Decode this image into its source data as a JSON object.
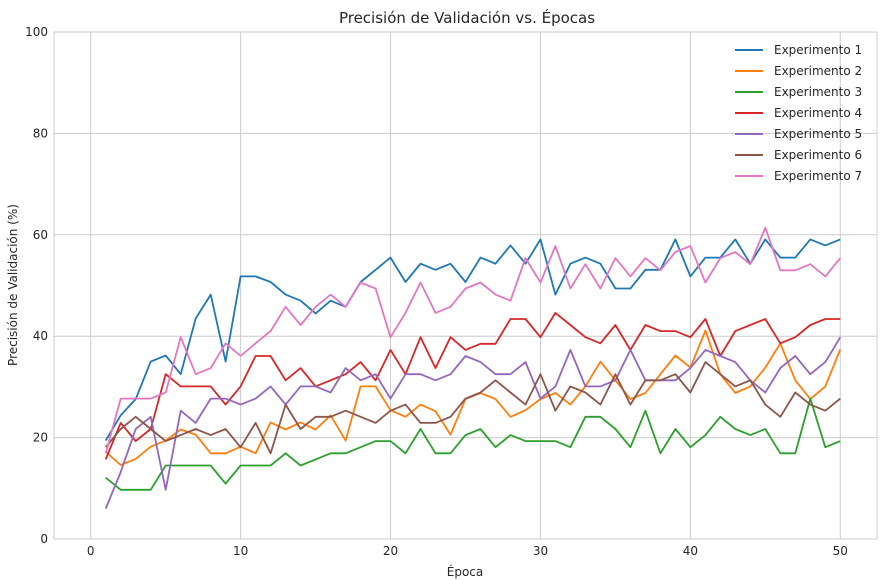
{
  "chart_data": {
    "type": "line",
    "title": "Precisión de Validación vs. Épocas",
    "xlabel": "Época",
    "ylabel": "Precisión de Validación (%)",
    "xlim": [
      -2.45,
      52.45
    ],
    "ylim": [
      0,
      100
    ],
    "xticks": [
      0,
      10,
      20,
      30,
      40,
      50
    ],
    "yticks": [
      0,
      20,
      40,
      60,
      80,
      100
    ],
    "grid": true,
    "legend_position": "top-right",
    "x": [
      1,
      2,
      3,
      4,
      5,
      6,
      7,
      8,
      9,
      10,
      11,
      12,
      13,
      14,
      15,
      16,
      17,
      18,
      19,
      20,
      21,
      22,
      23,
      24,
      25,
      26,
      27,
      28,
      29,
      30,
      31,
      32,
      33,
      34,
      35,
      36,
      37,
      38,
      39,
      40,
      41,
      42,
      43,
      44,
      45,
      46,
      47,
      48,
      49,
      50
    ],
    "series": [
      {
        "name": "Experimento 1",
        "color": "#1f77b4",
        "values": [
          19.4,
          24.4,
          27.6,
          35,
          36.2,
          32.5,
          43.5,
          48.2,
          35,
          51.8,
          51.8,
          50.7,
          48.2,
          47,
          44.5,
          47,
          45.8,
          50.7,
          53.1,
          55.5,
          50.7,
          54.3,
          53.1,
          54.3,
          50.7,
          55.5,
          54.3,
          57.9,
          54.3,
          59.1,
          48.2,
          54.3,
          55.5,
          54.3,
          49.4,
          49.4,
          53.1,
          53.1,
          59.1,
          51.8,
          55.5,
          55.5,
          59.1,
          54.3,
          59.1,
          55.5,
          55.5,
          59.1,
          57.9,
          59.1
        ]
      },
      {
        "name": "Experimento 2",
        "color": "#ff7f0e",
        "values": [
          17.2,
          14.6,
          15.8,
          18.2,
          19.4,
          21.6,
          20.6,
          16.9,
          16.9,
          18.2,
          16.9,
          23,
          21.6,
          23,
          21.6,
          24.4,
          19.4,
          30.1,
          30.1,
          25.4,
          24.1,
          26.5,
          25.2,
          20.6,
          27.6,
          28.8,
          27.6,
          24.1,
          25.4,
          27.6,
          28.8,
          26.5,
          30.1,
          35,
          31.3,
          27.6,
          28.8,
          32.5,
          36.2,
          33.8,
          41.1,
          32.5,
          28.8,
          30.1,
          33.8,
          38.6,
          31.3,
          27.6,
          30.1,
          37.4
        ]
      },
      {
        "name": "Experimento 3",
        "color": "#2ca02c",
        "values": [
          12.1,
          9.7,
          9.7,
          9.7,
          14.5,
          14.5,
          14.5,
          14.5,
          10.9,
          14.5,
          14.5,
          14.5,
          16.9,
          14.5,
          15.7,
          16.9,
          16.9,
          18.1,
          19.3,
          19.3,
          16.9,
          21.7,
          16.9,
          16.9,
          20.5,
          21.7,
          18.1,
          20.5,
          19.3,
          19.3,
          19.3,
          18.1,
          24.1,
          24.1,
          21.7,
          18.1,
          25.3,
          16.9,
          21.7,
          18.1,
          20.5,
          24.1,
          21.7,
          20.5,
          21.7,
          16.9,
          16.9,
          27.7,
          18.1,
          19.3
        ]
      },
      {
        "name": "Experimento 4",
        "color": "#d62728",
        "values": [
          15.7,
          22.9,
          19.3,
          21.7,
          32.5,
          30.1,
          30.1,
          30.1,
          26.5,
          30.1,
          36.1,
          36.1,
          31.3,
          33.7,
          30.1,
          31.3,
          32.5,
          34.9,
          31.3,
          37.3,
          32.5,
          39.8,
          33.7,
          39.8,
          37.3,
          38.5,
          38.5,
          43.4,
          43.4,
          39.8,
          44.6,
          42.2,
          39.8,
          38.6,
          42.2,
          37.3,
          42.2,
          41,
          41,
          39.8,
          43.4,
          36.1,
          41,
          42.2,
          43.4,
          38.6,
          39.8,
          42.2,
          43.4,
          43.4
        ]
      },
      {
        "name": "Experimento 5",
        "color": "#9467bd",
        "values": [
          6,
          13.2,
          21.7,
          24.1,
          9.7,
          25.3,
          22.9,
          27.7,
          27.7,
          26.5,
          27.7,
          30.1,
          26.5,
          30.1,
          30.1,
          28.9,
          33.7,
          31.3,
          32.5,
          27.7,
          32.5,
          32.5,
          31.3,
          32.5,
          36.1,
          34.9,
          32.5,
          32.5,
          34.9,
          27.7,
          30.1,
          37.3,
          30.1,
          30.1,
          31.3,
          37.3,
          31.3,
          31.3,
          31.3,
          33.7,
          37.3,
          36.1,
          34.9,
          31.3,
          28.9,
          33.7,
          36.1,
          32.5,
          34.9,
          39.8
        ]
      },
      {
        "name": "Experimento 6",
        "color": "#8c564b",
        "values": [
          18.1,
          21.7,
          24.1,
          21.7,
          19.3,
          20.5,
          21.7,
          20.5,
          21.7,
          18.1,
          22.9,
          16.9,
          26.5,
          21.7,
          24.1,
          24.1,
          25.3,
          24.1,
          22.9,
          25.3,
          26.5,
          22.9,
          22.9,
          24.1,
          27.7,
          28.9,
          31.3,
          28.9,
          26.5,
          32.5,
          25.3,
          30.1,
          28.9,
          26.5,
          32.5,
          26.5,
          31.3,
          31.3,
          32.5,
          28.9,
          34.9,
          32.5,
          30.1,
          31.3,
          26.5,
          24.1,
          28.9,
          26.5,
          25.3,
          27.7
        ]
      },
      {
        "name": "Experimento 7",
        "color": "#e377c2",
        "values": [
          16.9,
          27.7,
          27.7,
          27.7,
          28.9,
          39.8,
          32.5,
          33.7,
          38.6,
          36.1,
          38.6,
          41,
          45.8,
          42.2,
          45.8,
          48.2,
          45.8,
          50.6,
          49.4,
          39.8,
          44.6,
          50.6,
          44.6,
          45.8,
          49.4,
          50.6,
          48.2,
          47,
          55.4,
          50.6,
          57.8,
          49.4,
          54.2,
          49.4,
          55.4,
          51.8,
          55.4,
          53,
          56.6,
          57.8,
          50.6,
          55.4,
          56.6,
          54.2,
          61.4,
          53,
          53,
          54.2,
          51.8,
          55.4
        ]
      }
    ]
  }
}
